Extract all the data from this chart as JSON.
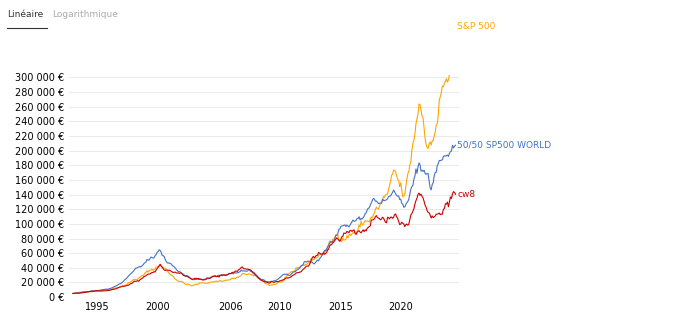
{
  "x_start_year": 1993,
  "x_end_year": 2024.5,
  "y_min": 0,
  "y_max": 300000,
  "y_ticks": [
    0,
    20000,
    40000,
    60000,
    80000,
    100000,
    120000,
    140000,
    160000,
    180000,
    200000,
    220000,
    240000,
    260000,
    280000,
    300000
  ],
  "x_ticks_years": [
    1995,
    2000,
    2006,
    2010,
    2015,
    2020
  ],
  "line_sp500_color": "#FFA500",
  "line_5050_color": "#4472C4",
  "line_cw8_color": "#CC0000",
  "label_sp500": "S&P 500",
  "label_5050": "50/50 SP500 WORLD",
  "label_cw8": "cw8",
  "lineare_label": "Linéaire",
  "log_label": "Logarithmique",
  "background_color": "#ffffff",
  "grid_color": "#e0e0e0",
  "font_size_axis": 7,
  "initial_value": 5000,
  "ty": [
    1993.0,
    1994.5,
    1996.0,
    1998.0,
    2000.2,
    2002.8,
    2004.5,
    2007.5,
    2009.2,
    2012.0,
    2015.0,
    2018.0,
    2019.5,
    2020.3,
    2021.5,
    2022.5,
    2023.2,
    2024.4
  ],
  "sp500_v": [
    5000,
    8000,
    13000,
    33000,
    60000,
    22000,
    30000,
    43000,
    20000,
    45000,
    88000,
    132000,
    157000,
    118000,
    235000,
    195000,
    255000,
    290000
  ],
  "blend_v": [
    5000,
    7500,
    11000,
    27000,
    49000,
    21000,
    27000,
    38000,
    20000,
    40000,
    72000,
    103000,
    122000,
    100000,
    162000,
    138000,
    168000,
    185000
  ],
  "cw8_v": [
    5000,
    7000,
    9500,
    23000,
    41000,
    19000,
    24000,
    34000,
    18000,
    34000,
    57000,
    80000,
    92000,
    75000,
    108000,
    88000,
    103000,
    120000
  ]
}
